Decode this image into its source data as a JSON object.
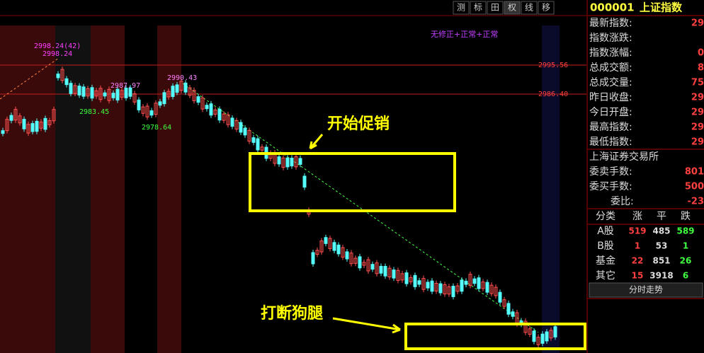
{
  "toolbar": {
    "buttons": [
      "测",
      "标",
      "田",
      "权",
      "线",
      "移"
    ]
  },
  "chart": {
    "mode_label": "无修正+正常+正常",
    "price_labels": [
      "2998.24(42)",
      "2998.24",
      "2987.97",
      "2990.43",
      "2983.45",
      "2978.64"
    ],
    "level_labels": [
      "2995.56",
      "2986.40"
    ],
    "annotations": [
      "开始促销",
      "打断狗腿"
    ]
  },
  "quote": {
    "code": "000001",
    "name": "上证指数",
    "fields": [
      {
        "label": "最新指数:",
        "value": "29"
      },
      {
        "label": "指数涨跌:",
        "value": ""
      },
      {
        "label": "指数涨幅:",
        "value": "0"
      },
      {
        "label": "总成交额:",
        "value": "8"
      },
      {
        "label": "总成交量:",
        "value": "75"
      },
      {
        "label": "昨日收盘:",
        "value": "29"
      },
      {
        "label": "今日开盘:",
        "value": "29"
      },
      {
        "label": "最高指数:",
        "value": "29"
      },
      {
        "label": "最低指数:",
        "value": "29"
      }
    ],
    "exchange": "上海证券交易所",
    "order_fields": [
      {
        "label": "委卖手数:",
        "value": "801"
      },
      {
        "label": "委买手数:",
        "value": "500"
      },
      {
        "label": "委比:",
        "value": "-23"
      }
    ],
    "breadth": {
      "header": [
        "分类",
        "涨",
        "平",
        "跌"
      ],
      "rows": [
        [
          "A股",
          519,
          485,
          589
        ],
        [
          "B股",
          1,
          53,
          1
        ],
        [
          "基金",
          22,
          851,
          26
        ],
        [
          "其它",
          15,
          3918,
          6
        ]
      ]
    },
    "button": "分时走势"
  }
}
